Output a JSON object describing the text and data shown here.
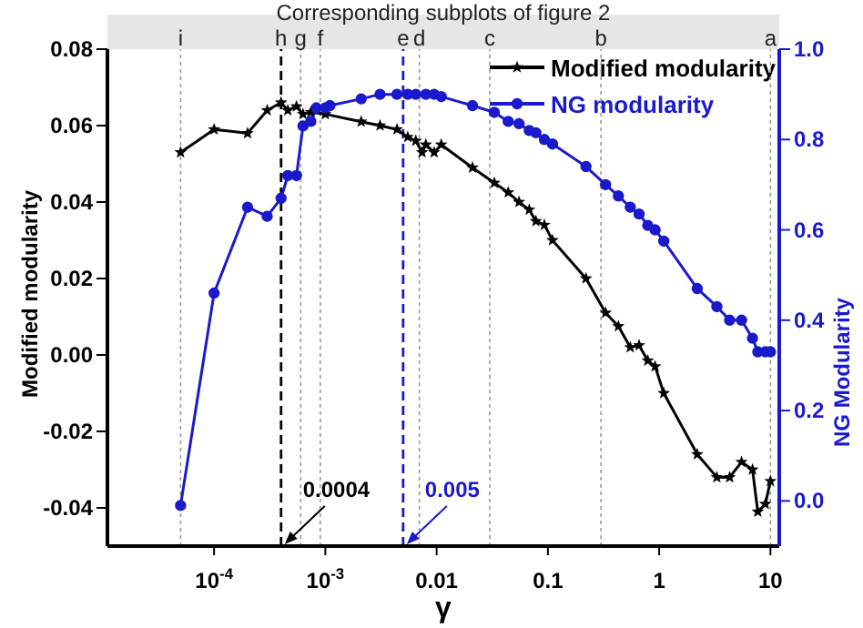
{
  "chart_data": {
    "type": "line",
    "title": "Corresponding subplots of figure 2",
    "xlabel": "γ",
    "ylabel": "Modified modularity",
    "y2label": "NG Modularity",
    "log": "x",
    "legend": "top right",
    "xlim": [
      1.1e-05,
      12
    ],
    "xticks": [
      {
        "value": 0.0001,
        "label": "10$^{-4}$"
      },
      {
        "value": 0.001,
        "label": "10$^{-3}$"
      },
      0.01,
      0.1,
      1,
      10
    ],
    "ylim": [
      -0.05,
      0.08
    ],
    "yticks": [
      -0.04,
      -0.02,
      {
        "value": 0,
        "label": "0.00"
      },
      0.02,
      0.04,
      0.06,
      0.08
    ],
    "y2lim": [
      -0.1,
      1.0
    ],
    "y2ticks": [
      {
        "value": 0,
        "label": "0.0"
      },
      0.2,
      0.4,
      0.6,
      0.8,
      {
        "value": 1,
        "label": "1.0"
      }
    ],
    "series": [
      {
        "name": "Modified modularity",
        "color": "#000000",
        "marker": "star",
        "x": [
          5e-05,
          0.0001,
          0.0002,
          0.0003,
          0.0004,
          0.00046,
          0.00055,
          0.00063,
          0.00074,
          0.001,
          0.0021,
          0.0031,
          0.0044,
          0.0055,
          0.0065,
          0.0074,
          0.008,
          0.0095,
          0.011,
          0.021,
          0.033,
          0.044,
          0.055,
          0.068,
          0.078,
          0.093,
          0.11,
          0.22,
          0.33,
          0.43,
          0.55,
          0.66,
          0.79,
          0.92,
          1.1,
          2.2,
          3.3,
          4.3,
          5.5,
          6.9,
          7.7,
          9,
          10
        ],
        "values": [
          0.053,
          0.059,
          0.058,
          0.064,
          0.066,
          0.064,
          0.065,
          0.063,
          0.0635,
          0.063,
          0.061,
          0.06,
          0.059,
          0.057,
          0.056,
          0.053,
          0.055,
          0.053,
          0.055,
          0.049,
          0.045,
          0.0425,
          0.04,
          0.038,
          0.035,
          0.034,
          0.03,
          0.02,
          0.011,
          0.0075,
          0.002,
          0.0025,
          -0.0015,
          -0.003,
          -0.01,
          -0.026,
          -0.032,
          -0.032,
          -0.028,
          -0.03,
          -0.041,
          -0.039,
          -0.033
        ]
      },
      {
        "name": "NG modularity",
        "color": "#1a1acc",
        "marker": "circle",
        "axis": "y2",
        "x": [
          5e-05,
          0.0001,
          0.0002,
          0.0003,
          0.0004,
          0.00046,
          0.00055,
          0.00063,
          0.00074,
          0.00083,
          0.001,
          0.0011,
          0.0021,
          0.0031,
          0.0044,
          0.0055,
          0.0065,
          0.008,
          0.0095,
          0.011,
          0.021,
          0.033,
          0.044,
          0.055,
          0.068,
          0.078,
          0.093,
          0.11,
          0.22,
          0.33,
          0.43,
          0.55,
          0.66,
          0.79,
          0.92,
          1.1,
          2.2,
          3.3,
          4.3,
          5.5,
          6.9,
          7.7,
          9,
          10
        ],
        "values": [
          -0.01,
          0.46,
          0.65,
          0.63,
          0.67,
          0.72,
          0.72,
          0.83,
          0.84,
          0.87,
          0.87,
          0.875,
          0.89,
          0.9,
          0.9,
          0.9,
          0.9,
          0.9,
          0.9,
          0.895,
          0.875,
          0.86,
          0.84,
          0.835,
          0.82,
          0.815,
          0.8,
          0.79,
          0.74,
          0.7,
          0.675,
          0.65,
          0.635,
          0.61,
          0.6,
          0.575,
          0.47,
          0.43,
          0.4,
          0.4,
          0.36,
          0.33,
          0.33,
          0.33
        ]
      }
    ],
    "ref_lines": [
      {
        "axis": "x",
        "value": 5e-05,
        "label": "i",
        "color": "#999999",
        "line_style": "dotted"
      },
      {
        "axis": "x",
        "value": 0.0004,
        "label": "h",
        "color": "#000000",
        "line_style": "dashed"
      },
      {
        "axis": "x",
        "value": 0.0006,
        "label": "g",
        "color": "#999999",
        "line_style": "dotted"
      },
      {
        "axis": "x",
        "value": 0.0009,
        "label": "f",
        "color": "#999999",
        "line_style": "dotted"
      },
      {
        "axis": "x",
        "value": 0.005,
        "label": "e",
        "color": "#1a1acc",
        "line_style": "dashed"
      },
      {
        "axis": "x",
        "value": 0.007,
        "label": "d",
        "color": "#999999",
        "line_style": "dotted"
      },
      {
        "axis": "x",
        "value": 0.03,
        "label": "c",
        "color": "#999999",
        "line_style": "dotted"
      },
      {
        "axis": "x",
        "value": 0.3,
        "label": "b",
        "color": "#999999",
        "line_style": "dotted"
      },
      {
        "axis": "x",
        "value": 10,
        "label": "a",
        "color": "#999999",
        "line_style": "dotted"
      }
    ],
    "annotations": [
      {
        "text": "0.0004",
        "x": 0.0004,
        "y": -0.05
      },
      {
        "text": "0.005",
        "x": 0.005,
        "y": -0.05
      }
    ]
  }
}
